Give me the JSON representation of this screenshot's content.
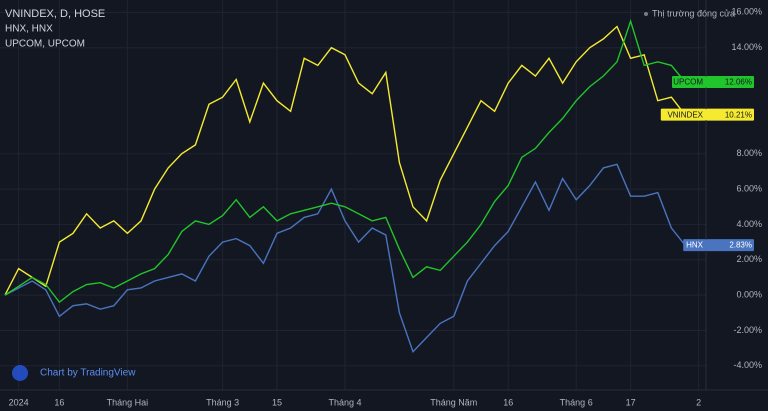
{
  "chart_data": {
    "type": "line",
    "title": "VNINDEX, D, HOSE",
    "legend_labels": [
      "HNX, HNX",
      "UPCOM, UPCOM"
    ],
    "status": "Thị trường đóng cửa",
    "watermark": "Chart by TradingView",
    "categories": [
      null,
      "2024",
      null,
      null,
      "16",
      null,
      null,
      null,
      null,
      "Tháng Hai",
      null,
      null,
      null,
      null,
      null,
      null,
      "Tháng 3",
      null,
      null,
      null,
      "15",
      null,
      null,
      null,
      null,
      "Tháng 4",
      null,
      null,
      null,
      null,
      null,
      null,
      null,
      "Tháng Năm",
      null,
      null,
      null,
      "16",
      null,
      null,
      null,
      null,
      "Tháng 6",
      null,
      null,
      null,
      "17",
      null,
      null,
      null,
      null,
      "2"
    ],
    "series": [
      {
        "name": "VNINDEX",
        "color": "#f5ea2f",
        "label_text_color": "#131722",
        "values": [
          0,
          1.5,
          1.0,
          0.5,
          3.0,
          3.5,
          4.6,
          3.8,
          4.2,
          3.5,
          4.2,
          6.0,
          7.2,
          8.0,
          8.5,
          10.8,
          11.2,
          12.2,
          9.8,
          12.0,
          11.0,
          10.4,
          13.4,
          13.0,
          14.0,
          13.6,
          12.0,
          11.4,
          12.6,
          7.5,
          5.0,
          4.2,
          6.5,
          8.0,
          9.5,
          11.0,
          10.4,
          12.0,
          13.0,
          12.4,
          13.4,
          12.0,
          13.2,
          14.0,
          14.5,
          15.2,
          13.4,
          13.6,
          11.0,
          11.2,
          10.21,
          null
        ],
        "value_labels": [
          null,
          null,
          null,
          null,
          null,
          null,
          null,
          null,
          null,
          null,
          null,
          null,
          null,
          null,
          null,
          null,
          null,
          null,
          null,
          null,
          null,
          null,
          null,
          null,
          null,
          null,
          null,
          null,
          null,
          null,
          null,
          null,
          null,
          null,
          null,
          null,
          null,
          null,
          null,
          null,
          null,
          null,
          null,
          null,
          null,
          null,
          null,
          null,
          null,
          null,
          "10.21%",
          null
        ]
      },
      {
        "name": "HNX",
        "color": "#4a74c0",
        "label_text_color": "#ffffff",
        "values": [
          0,
          0.4,
          0.8,
          0.3,
          -1.2,
          -0.6,
          -0.5,
          -0.8,
          -0.6,
          0.3,
          0.4,
          0.8,
          1.0,
          1.2,
          0.8,
          2.2,
          3.0,
          3.2,
          2.8,
          1.8,
          3.5,
          3.8,
          4.4,
          4.6,
          6.0,
          4.2,
          3.0,
          3.8,
          3.4,
          -1.0,
          -3.2,
          -2.4,
          -1.6,
          -1.2,
          0.8,
          1.8,
          2.8,
          3.6,
          5.0,
          6.4,
          4.8,
          6.6,
          5.4,
          6.2,
          7.2,
          7.4,
          5.6,
          5.6,
          5.8,
          3.8,
          2.83,
          null
        ],
        "value_labels": [
          null,
          null,
          null,
          null,
          null,
          null,
          null,
          null,
          null,
          null,
          null,
          null,
          null,
          null,
          null,
          null,
          null,
          null,
          null,
          null,
          null,
          null,
          null,
          null,
          null,
          null,
          null,
          null,
          null,
          null,
          null,
          null,
          null,
          null,
          null,
          null,
          null,
          null,
          null,
          null,
          null,
          null,
          null,
          null,
          null,
          null,
          null,
          null,
          null,
          null,
          "2.83%",
          null
        ]
      },
      {
        "name": "UPCOM",
        "color": "#22c42b",
        "label_text_color": "#131722",
        "values": [
          0,
          0.5,
          1.0,
          0.6,
          -0.4,
          0.2,
          0.6,
          0.7,
          0.4,
          0.8,
          1.2,
          1.5,
          2.3,
          3.6,
          4.2,
          4.0,
          4.5,
          5.4,
          4.4,
          5.0,
          4.2,
          4.6,
          4.8,
          5.0,
          5.2,
          5.0,
          4.6,
          4.2,
          4.4,
          2.6,
          1.0,
          1.6,
          1.4,
          2.2,
          3.0,
          4.0,
          5.3,
          6.2,
          7.8,
          8.3,
          9.2,
          10.0,
          11.0,
          11.8,
          12.4,
          13.2,
          15.5,
          13.0,
          13.2,
          13.0,
          12.06,
          null
        ],
        "value_labels": [
          null,
          null,
          null,
          null,
          null,
          null,
          null,
          null,
          null,
          null,
          null,
          null,
          null,
          null,
          null,
          null,
          null,
          null,
          null,
          null,
          null,
          null,
          null,
          null,
          null,
          null,
          null,
          null,
          null,
          null,
          null,
          null,
          null,
          null,
          null,
          null,
          null,
          null,
          null,
          null,
          null,
          null,
          null,
          null,
          null,
          null,
          null,
          null,
          null,
          null,
          "12.06%",
          null
        ]
      }
    ],
    "ylim": [
      -5.2,
      16.7
    ],
    "yticks": [
      {
        "value": 16,
        "label": "16.00%"
      },
      {
        "value": 14,
        "label": "14.00%"
      },
      {
        "value": 8,
        "label": "8.00%"
      },
      {
        "value": 6,
        "label": "6.00%"
      },
      {
        "value": 4,
        "label": "4.00%"
      },
      {
        "value": 2,
        "label": "2.00%"
      },
      {
        "value": 0,
        "label": "0.00%"
      },
      {
        "value": -2,
        "label": "-2.00%"
      },
      {
        "value": -4,
        "label": "-4.00%"
      }
    ],
    "grid": true
  }
}
